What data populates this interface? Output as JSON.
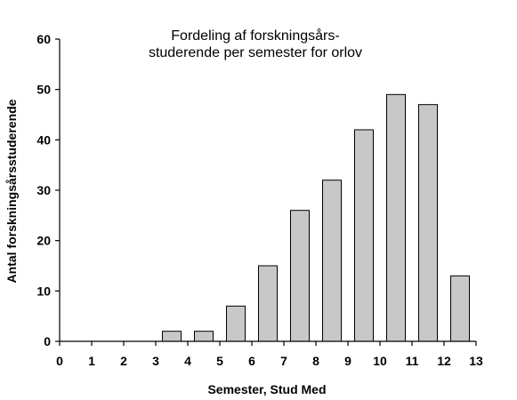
{
  "chart_data": {
    "type": "bar",
    "title_lines": [
      "Fordeling af forskningsårs-",
      "studerende per semester for orlov"
    ],
    "xlabel": "Semester, Stud Med",
    "ylabel": "Antal forskningsårsstuderende",
    "x_ticks": [
      0,
      1,
      2,
      3,
      4,
      5,
      6,
      7,
      8,
      9,
      10,
      11,
      12,
      13
    ],
    "y_ticks": [
      0,
      10,
      20,
      30,
      40,
      50,
      60
    ],
    "xlim": [
      0,
      13
    ],
    "ylim": [
      0,
      60
    ],
    "categories": [
      3,
      4,
      5,
      6,
      7,
      8,
      9,
      10,
      11,
      12
    ],
    "values": [
      2,
      2,
      7,
      15,
      26,
      32,
      42,
      49,
      47,
      13
    ],
    "bar_color": "#c8c8c8",
    "bar_edge_color": "#000000",
    "grid": false,
    "legend": "none"
  }
}
